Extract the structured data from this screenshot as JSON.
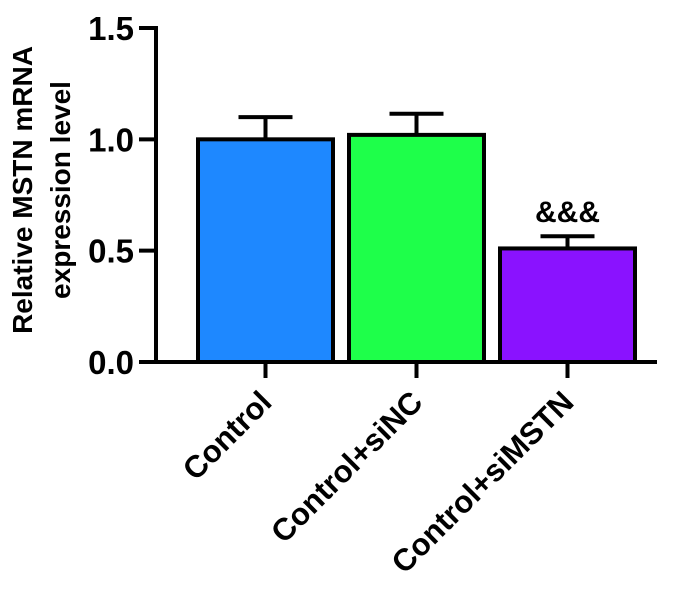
{
  "chart_data": {
    "type": "bar",
    "title": "",
    "xlabel": "",
    "ylabel_lines": [
      "Relative MSTN mRNA",
      "expression level"
    ],
    "categories": [
      "Control",
      "Control+siNC",
      "Control+siMSTN"
    ],
    "values": [
      1.0,
      1.02,
      0.51
    ],
    "errors": [
      0.1,
      0.095,
      0.055
    ],
    "annotations": [
      "",
      "",
      "&&&"
    ],
    "colors": [
      "#1e88ff",
      "#1eff4a",
      "#8a12ff"
    ],
    "ylim": [
      0,
      1.5
    ],
    "yticks": [
      0.0,
      0.5,
      1.0,
      1.5
    ],
    "ytick_labels": [
      "0.0",
      "0.5",
      "1.0",
      "1.5"
    ],
    "grid": false,
    "legend": "none"
  }
}
